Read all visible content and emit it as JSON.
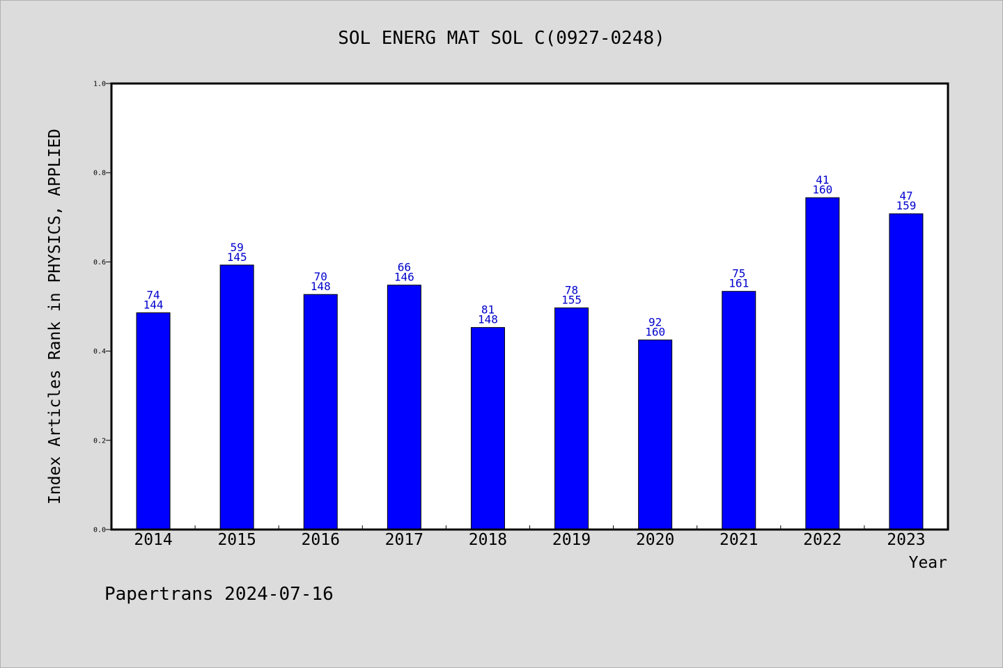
{
  "chart_data": {
    "type": "bar",
    "title": "SOL ENERG MAT SOL C(0927-0248)",
    "ylabel": "Index Articles Rank in PHYSICS, APPLIED",
    "xlabel": "Year",
    "ylim": [
      0.0,
      1.0
    ],
    "yticks": [
      "0.0",
      "0.2",
      "0.4",
      "0.6",
      "0.8",
      "1.0"
    ],
    "categories": [
      "2014",
      "2015",
      "2016",
      "2017",
      "2018",
      "2019",
      "2020",
      "2021",
      "2022",
      "2023"
    ],
    "values": [
      0.486,
      0.593,
      0.527,
      0.548,
      0.453,
      0.497,
      0.425,
      0.534,
      0.744,
      0.708
    ],
    "rank": [
      "74",
      "59",
      "70",
      "66",
      "81",
      "78",
      "92",
      "75",
      "41",
      "47"
    ],
    "total": [
      "144",
      "145",
      "148",
      "146",
      "148",
      "155",
      "160",
      "161",
      "160",
      "159"
    ],
    "bar_color": "#0000ff",
    "label_color": "#0000cc",
    "grid": false,
    "legend": "none"
  },
  "footer": "Papertrans 2024-07-16"
}
